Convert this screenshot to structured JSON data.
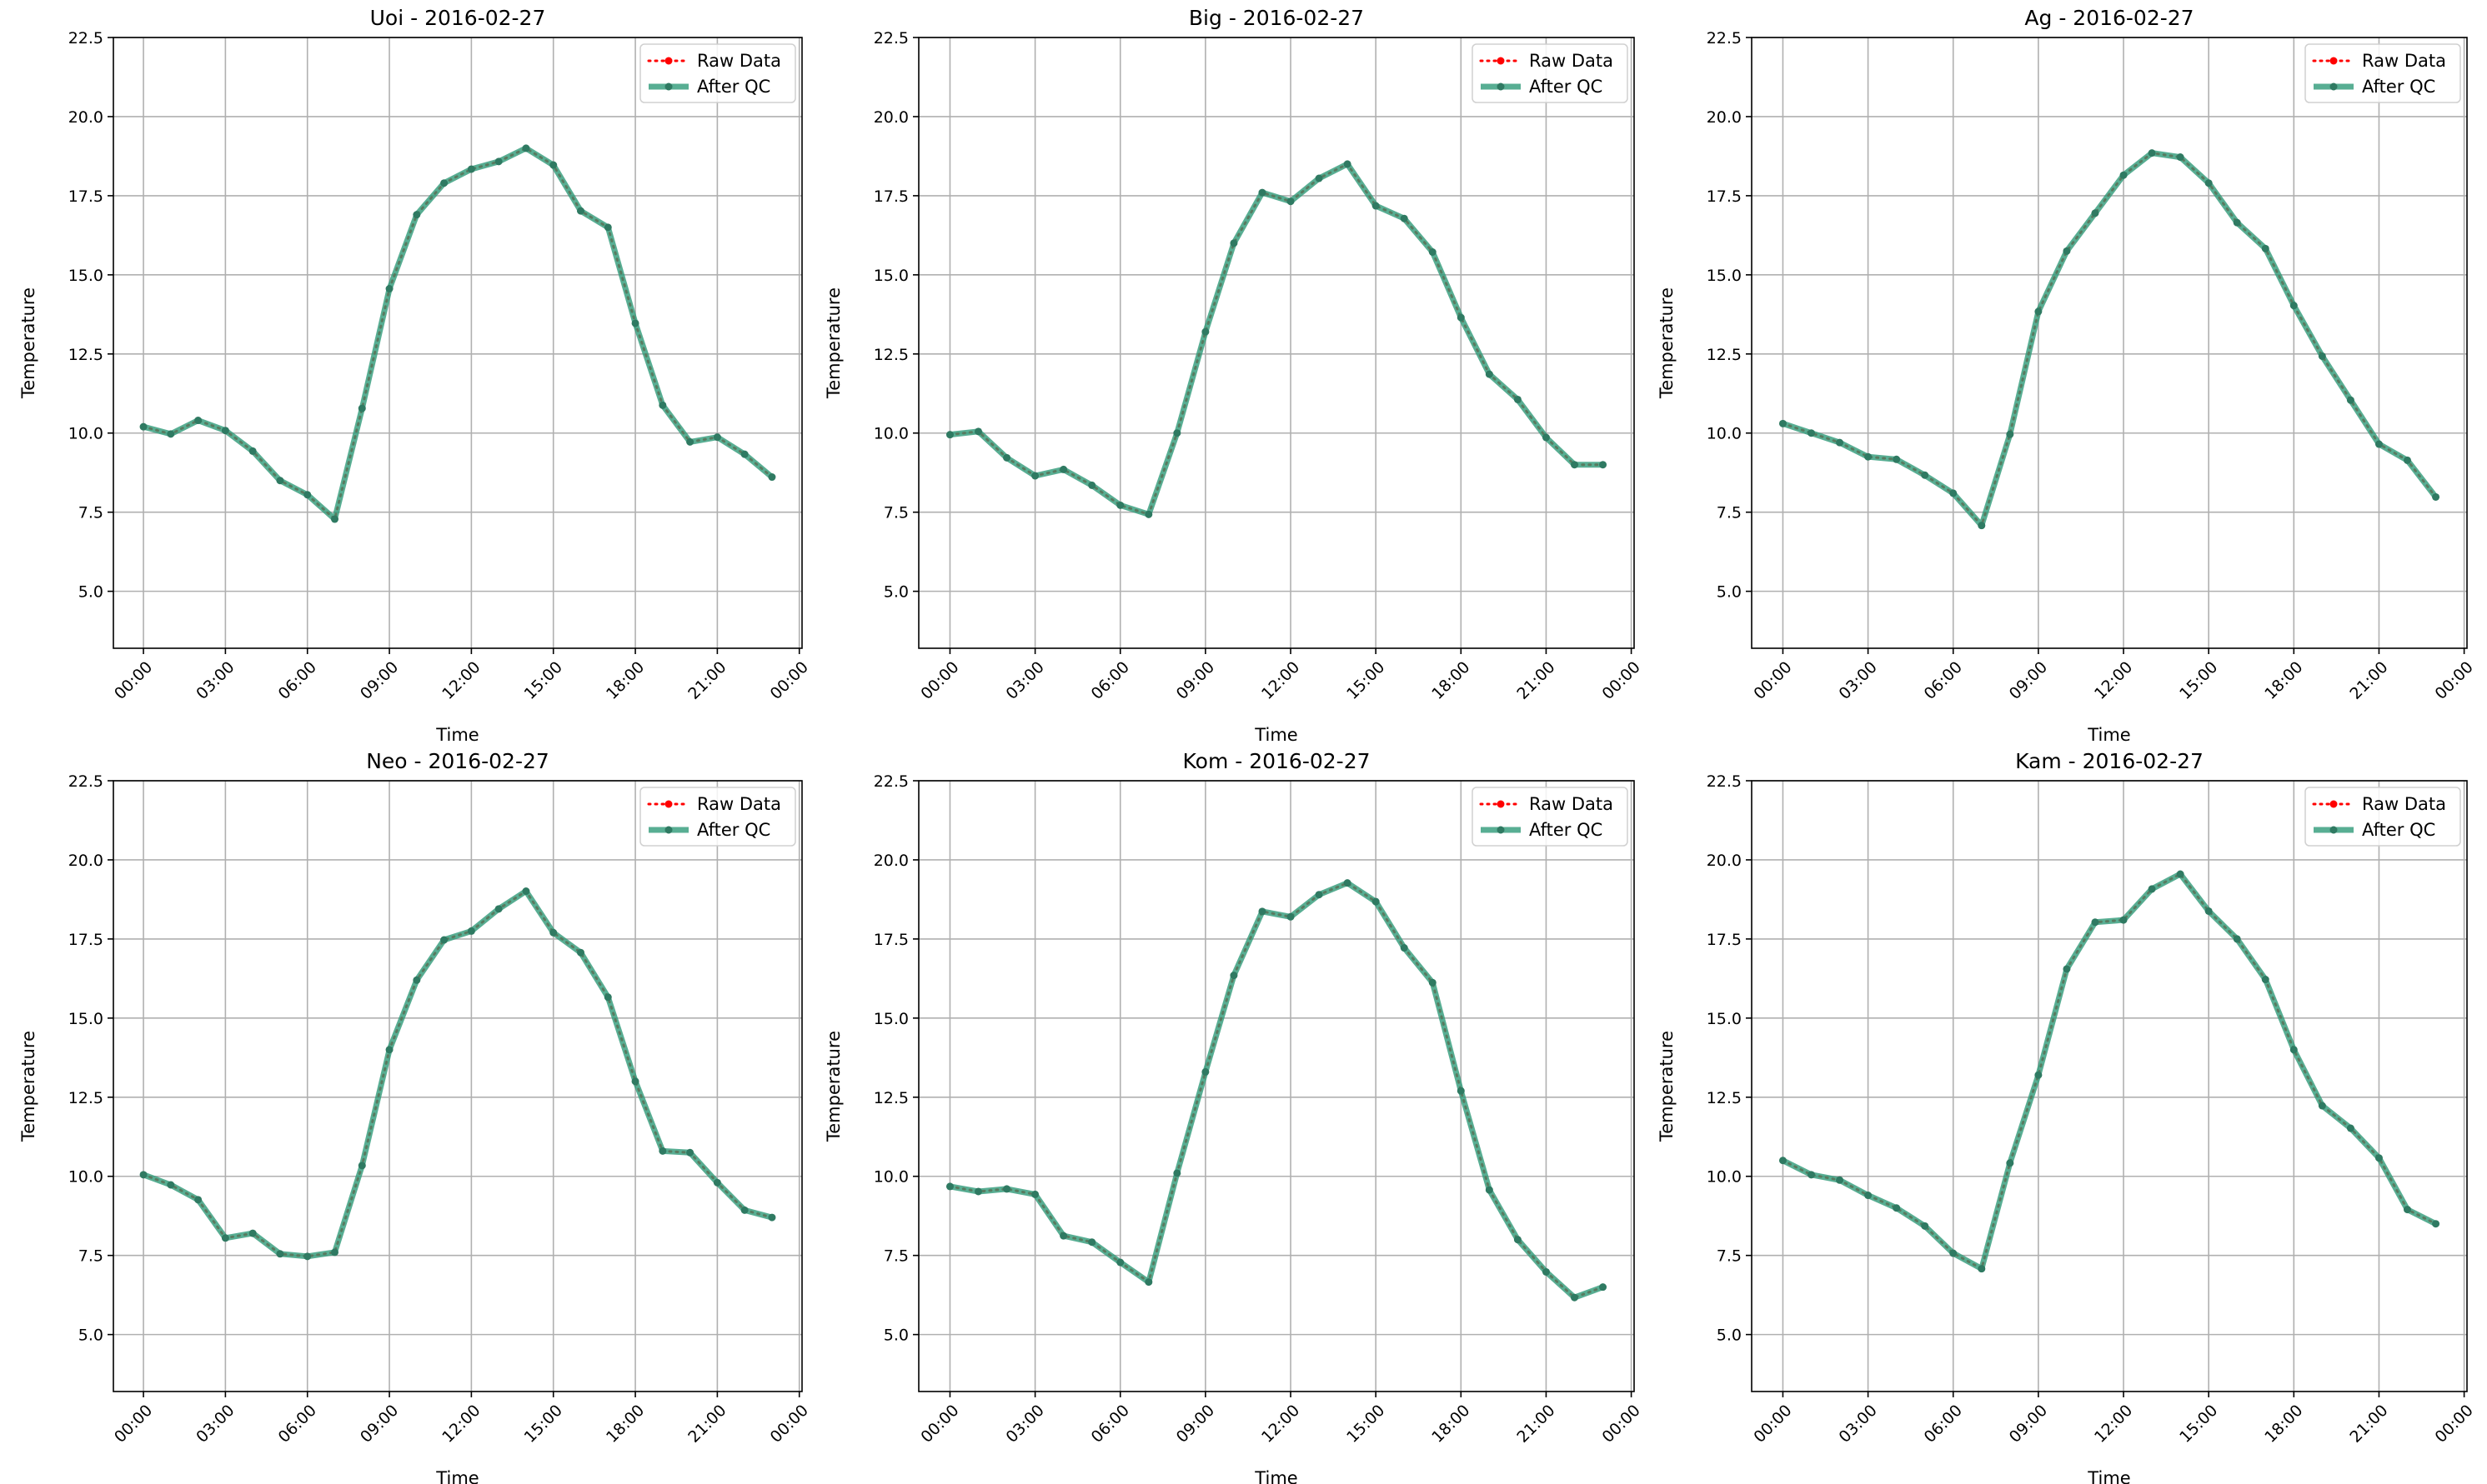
{
  "figure": {
    "background": "#ffffff"
  },
  "style": {
    "raw_color": "#ff0000",
    "qc_color": "#2e9a78",
    "qc_marker_color": "#2f7a62",
    "grid_color": "#b0b0b0"
  },
  "chart_data": [
    {
      "type": "line",
      "title": "Uoi - 2016-02-27",
      "xlabel": "Time",
      "ylabel": "Temperature",
      "xlim": [
        -1.1,
        24.1
      ],
      "ylim": [
        3.2,
        22.5
      ],
      "xticks": [
        0,
        3,
        6,
        9,
        12,
        15,
        18,
        21,
        24
      ],
      "xtick_labels": [
        "00:00",
        "03:00",
        "06:00",
        "09:00",
        "12:00",
        "15:00",
        "18:00",
        "21:00",
        "00:00"
      ],
      "yticks": [
        5.0,
        7.5,
        10.0,
        12.5,
        15.0,
        17.5,
        20.0,
        22.5
      ],
      "ytick_labels": [
        "5.0",
        "7.5",
        "10.0",
        "12.5",
        "15.0",
        "17.5",
        "20.0",
        "22.5"
      ],
      "grid": true,
      "legend_position": "top-right",
      "x": [
        0,
        1,
        2,
        3,
        4,
        5,
        6,
        7,
        8,
        9,
        10,
        11,
        12,
        13,
        14,
        15,
        16,
        17,
        18,
        19,
        20,
        21,
        22,
        23
      ],
      "series": [
        {
          "name": "Raw Data",
          "values": [
            10.2,
            9.97,
            10.4,
            10.08,
            9.43,
            8.5,
            8.05,
            7.28,
            10.78,
            14.56,
            16.9,
            17.9,
            18.34,
            18.58,
            19.0,
            18.47,
            17.02,
            16.5,
            13.47,
            10.88,
            9.72,
            9.87,
            9.33,
            8.61
          ]
        },
        {
          "name": "After QC",
          "values": [
            10.2,
            9.97,
            10.4,
            10.08,
            9.43,
            8.5,
            8.05,
            7.28,
            10.78,
            14.56,
            16.9,
            17.9,
            18.34,
            18.58,
            19.0,
            18.47,
            17.02,
            16.5,
            13.47,
            10.88,
            9.72,
            9.87,
            9.33,
            8.61
          ]
        }
      ]
    },
    {
      "type": "line",
      "title": "Big - 2016-02-27",
      "xlabel": "Time",
      "ylabel": "Temperature",
      "xlim": [
        -1.1,
        24.1
      ],
      "ylim": [
        3.2,
        22.5
      ],
      "xticks": [
        0,
        3,
        6,
        9,
        12,
        15,
        18,
        21,
        24
      ],
      "xtick_labels": [
        "00:00",
        "03:00",
        "06:00",
        "09:00",
        "12:00",
        "15:00",
        "18:00",
        "21:00",
        "00:00"
      ],
      "yticks": [
        5.0,
        7.5,
        10.0,
        12.5,
        15.0,
        17.5,
        20.0,
        22.5
      ],
      "ytick_labels": [
        "5.0",
        "7.5",
        "10.0",
        "12.5",
        "15.0",
        "17.5",
        "20.0",
        "22.5"
      ],
      "grid": true,
      "legend_position": "top-right",
      "x": [
        0,
        1,
        2,
        3,
        4,
        5,
        6,
        7,
        8,
        9,
        10,
        11,
        12,
        13,
        14,
        15,
        16,
        17,
        18,
        19,
        20,
        21,
        22,
        23
      ],
      "series": [
        {
          "name": "Raw Data",
          "values": [
            9.95,
            10.05,
            9.22,
            8.65,
            8.85,
            8.35,
            7.72,
            7.43,
            10.0,
            13.2,
            16.0,
            17.6,
            17.32,
            18.05,
            18.5,
            17.18,
            16.78,
            15.72,
            13.65,
            11.86,
            11.06,
            9.86,
            9.0,
            9.0
          ]
        },
        {
          "name": "After QC",
          "values": [
            9.95,
            10.05,
            9.22,
            8.65,
            8.85,
            8.35,
            7.72,
            7.43,
            10.0,
            13.2,
            16.0,
            17.6,
            17.32,
            18.05,
            18.5,
            17.18,
            16.78,
            15.72,
            13.65,
            11.86,
            11.06,
            9.86,
            9.0,
            9.0
          ]
        }
      ]
    },
    {
      "type": "line",
      "title": "Ag - 2016-02-27",
      "xlabel": "Time",
      "ylabel": "Temperature",
      "xlim": [
        -1.1,
        24.1
      ],
      "ylim": [
        3.2,
        22.5
      ],
      "xticks": [
        0,
        3,
        6,
        9,
        12,
        15,
        18,
        21,
        24
      ],
      "xtick_labels": [
        "00:00",
        "03:00",
        "06:00",
        "09:00",
        "12:00",
        "15:00",
        "18:00",
        "21:00",
        "00:00"
      ],
      "yticks": [
        5.0,
        7.5,
        10.0,
        12.5,
        15.0,
        17.5,
        20.0,
        22.5
      ],
      "ytick_labels": [
        "5.0",
        "7.5",
        "10.0",
        "12.5",
        "15.0",
        "17.5",
        "20.0",
        "22.5"
      ],
      "grid": true,
      "legend_position": "top-right",
      "x": [
        0,
        1,
        2,
        3,
        4,
        5,
        6,
        7,
        8,
        9,
        10,
        11,
        12,
        13,
        14,
        15,
        16,
        17,
        18,
        19,
        20,
        21,
        22,
        23
      ],
      "series": [
        {
          "name": "Raw Data",
          "values": [
            10.3,
            10.0,
            9.7,
            9.25,
            9.17,
            8.67,
            8.1,
            7.08,
            9.96,
            13.84,
            15.75,
            16.95,
            18.15,
            18.85,
            18.72,
            17.9,
            16.65,
            15.83,
            14.03,
            12.43,
            11.04,
            9.65,
            9.14,
            7.98
          ]
        },
        {
          "name": "After QC",
          "values": [
            10.3,
            10.0,
            9.7,
            9.25,
            9.17,
            8.67,
            8.1,
            7.08,
            9.96,
            13.84,
            15.75,
            16.95,
            18.15,
            18.85,
            18.72,
            17.9,
            16.65,
            15.83,
            14.03,
            12.43,
            11.04,
            9.65,
            9.14,
            7.98
          ]
        }
      ]
    },
    {
      "type": "line",
      "title": "Neo - 2016-02-27",
      "xlabel": "Time",
      "ylabel": "Temperature",
      "xlim": [
        -1.1,
        24.1
      ],
      "ylim": [
        3.2,
        22.5
      ],
      "xticks": [
        0,
        3,
        6,
        9,
        12,
        15,
        18,
        21,
        24
      ],
      "xtick_labels": [
        "00:00",
        "03:00",
        "06:00",
        "09:00",
        "12:00",
        "15:00",
        "18:00",
        "21:00",
        "00:00"
      ],
      "yticks": [
        5.0,
        7.5,
        10.0,
        12.5,
        15.0,
        17.5,
        20.0,
        22.5
      ],
      "ytick_labels": [
        "5.0",
        "7.5",
        "10.0",
        "12.5",
        "15.0",
        "17.5",
        "20.0",
        "22.5"
      ],
      "grid": true,
      "legend_position": "top-right",
      "x": [
        0,
        1,
        2,
        3,
        4,
        5,
        6,
        7,
        8,
        9,
        10,
        11,
        12,
        13,
        14,
        15,
        16,
        17,
        18,
        19,
        20,
        21,
        22,
        23
      ],
      "series": [
        {
          "name": "Raw Data",
          "values": [
            10.05,
            9.73,
            9.26,
            8.05,
            8.2,
            7.55,
            7.47,
            7.6,
            10.34,
            14.0,
            16.2,
            17.47,
            17.75,
            18.45,
            19.01,
            17.7,
            17.07,
            15.66,
            13.0,
            10.8,
            10.75,
            9.8,
            8.93,
            8.7
          ]
        },
        {
          "name": "After QC",
          "values": [
            10.05,
            9.73,
            9.26,
            8.05,
            8.2,
            7.55,
            7.47,
            7.6,
            10.34,
            14.0,
            16.2,
            17.47,
            17.75,
            18.45,
            19.01,
            17.7,
            17.07,
            15.66,
            13.0,
            10.8,
            10.75,
            9.8,
            8.93,
            8.7
          ]
        }
      ]
    },
    {
      "type": "line",
      "title": "Kom - 2016-02-27",
      "xlabel": "Time",
      "ylabel": "Temperature",
      "xlim": [
        -1.1,
        24.1
      ],
      "ylim": [
        3.2,
        22.5
      ],
      "xticks": [
        0,
        3,
        6,
        9,
        12,
        15,
        18,
        21,
        24
      ],
      "xtick_labels": [
        "00:00",
        "03:00",
        "06:00",
        "09:00",
        "12:00",
        "15:00",
        "18:00",
        "21:00",
        "00:00"
      ],
      "yticks": [
        5.0,
        7.5,
        10.0,
        12.5,
        15.0,
        17.5,
        20.0,
        22.5
      ],
      "ytick_labels": [
        "5.0",
        "7.5",
        "10.0",
        "12.5",
        "15.0",
        "17.5",
        "20.0",
        "22.5"
      ],
      "grid": true,
      "legend_position": "top-right",
      "x": [
        0,
        1,
        2,
        3,
        4,
        5,
        6,
        7,
        8,
        9,
        10,
        11,
        12,
        13,
        14,
        15,
        16,
        17,
        18,
        19,
        20,
        21,
        22,
        23
      ],
      "series": [
        {
          "name": "Raw Data",
          "values": [
            9.68,
            9.52,
            9.6,
            9.43,
            8.12,
            7.92,
            7.28,
            6.66,
            10.1,
            13.3,
            16.35,
            18.37,
            18.2,
            18.9,
            19.27,
            18.68,
            17.22,
            16.12,
            12.7,
            9.57,
            8.0,
            6.98,
            6.17,
            6.5
          ]
        },
        {
          "name": "After QC",
          "values": [
            9.68,
            9.52,
            9.6,
            9.43,
            8.12,
            7.92,
            7.28,
            6.66,
            10.1,
            13.3,
            16.35,
            18.37,
            18.2,
            18.9,
            19.27,
            18.68,
            17.22,
            16.12,
            12.7,
            9.57,
            8.0,
            6.98,
            6.17,
            6.5
          ]
        }
      ]
    },
    {
      "type": "line",
      "title": "Kam - 2016-02-27",
      "xlabel": "Time",
      "ylabel": "Temperature",
      "xlim": [
        -1.1,
        24.1
      ],
      "ylim": [
        3.2,
        22.5
      ],
      "xticks": [
        0,
        3,
        6,
        9,
        12,
        15,
        18,
        21,
        24
      ],
      "xtick_labels": [
        "00:00",
        "03:00",
        "06:00",
        "09:00",
        "12:00",
        "15:00",
        "18:00",
        "21:00",
        "00:00"
      ],
      "yticks": [
        5.0,
        7.5,
        10.0,
        12.5,
        15.0,
        17.5,
        20.0,
        22.5
      ],
      "ytick_labels": [
        "5.0",
        "7.5",
        "10.0",
        "12.5",
        "15.0",
        "17.5",
        "20.0",
        "22.5"
      ],
      "grid": true,
      "legend_position": "top-right",
      "x": [
        0,
        1,
        2,
        3,
        4,
        5,
        6,
        7,
        8,
        9,
        10,
        11,
        12,
        13,
        14,
        15,
        16,
        17,
        18,
        19,
        20,
        21,
        22,
        23
      ],
      "series": [
        {
          "name": "Raw Data",
          "values": [
            10.5,
            10.05,
            9.88,
            9.4,
            9.0,
            8.43,
            7.57,
            7.08,
            10.42,
            13.2,
            16.55,
            18.03,
            18.1,
            19.08,
            19.55,
            18.38,
            17.5,
            16.22,
            14.0,
            12.23,
            11.52,
            10.58,
            8.95,
            8.5
          ]
        },
        {
          "name": "After QC",
          "values": [
            10.5,
            10.05,
            9.88,
            9.4,
            9.0,
            8.43,
            7.57,
            7.08,
            10.42,
            13.2,
            16.55,
            18.03,
            18.1,
            19.08,
            19.55,
            18.38,
            17.5,
            16.22,
            14.0,
            12.23,
            11.52,
            10.58,
            8.95,
            8.5
          ]
        }
      ]
    }
  ]
}
